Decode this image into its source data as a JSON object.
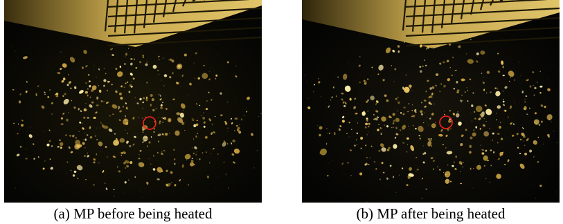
{
  "figure": {
    "panels": [
      {
        "id": "a",
        "caption": "(a) MP before being heated",
        "seed": 17
      },
      {
        "id": "b",
        "caption": "(b) MP after being heated",
        "seed": 41
      }
    ]
  },
  "colors": {
    "background": "#0b0b05",
    "particle": "#e8c25a",
    "particle_bright": "#fff0a8",
    "grid_paper": "#cdb05a",
    "grid_line": "#2a2008",
    "highlight_circle": "#ff2020"
  }
}
